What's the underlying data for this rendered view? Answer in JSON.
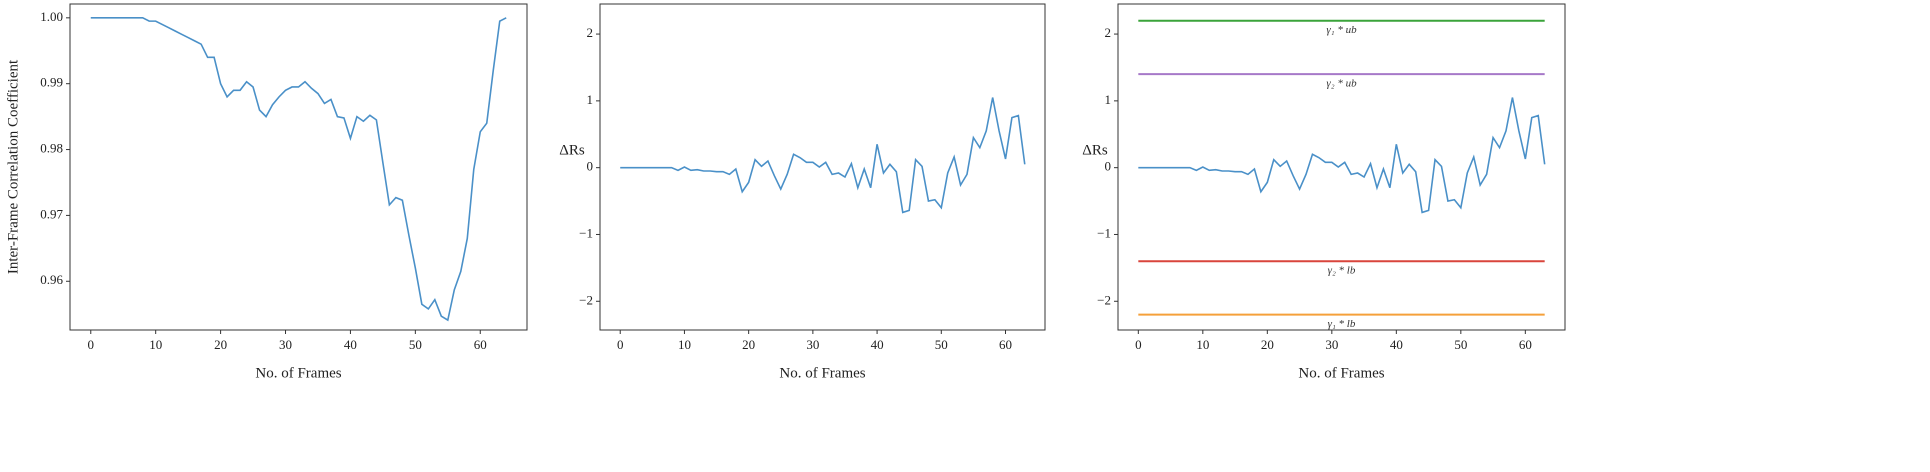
{
  "chart_data": [
    {
      "type": "line",
      "xlabel": "No. of Frames",
      "ylabel": "Inter-Frame Correlation Coefficient",
      "x": [
        0,
        1,
        2,
        3,
        4,
        5,
        6,
        7,
        8,
        9,
        10,
        11,
        12,
        13,
        14,
        15,
        16,
        17,
        18,
        19,
        20,
        21,
        22,
        23,
        24,
        25,
        26,
        27,
        28,
        29,
        30,
        31,
        32,
        33,
        34,
        35,
        36,
        37,
        38,
        39,
        40,
        41,
        42,
        43,
        44,
        45,
        46,
        47,
        48,
        49,
        50,
        51,
        52,
        53,
        54,
        55,
        56,
        57,
        58,
        59,
        60,
        61,
        62,
        63,
        64
      ],
      "values": [
        1.0,
        1.0,
        1.0,
        1.0,
        1.0,
        1.0,
        1.0,
        1.0,
        1.0,
        0.9995,
        0.9995,
        0.999,
        0.9985,
        0.998,
        0.9975,
        0.997,
        0.9965,
        0.996,
        0.994,
        0.994,
        0.99,
        0.988,
        0.989,
        0.989,
        0.9903,
        0.9895,
        0.986,
        0.985,
        0.9868,
        0.988,
        0.989,
        0.9895,
        0.9895,
        0.9903,
        0.9893,
        0.9885,
        0.987,
        0.9876,
        0.985,
        0.9848,
        0.9817,
        0.985,
        0.9843,
        0.9852,
        0.9845,
        0.978,
        0.9716,
        0.9727,
        0.9723,
        0.967,
        0.962,
        0.9565,
        0.9558,
        0.9572,
        0.9547,
        0.9541,
        0.9587,
        0.9615,
        0.9665,
        0.977,
        0.9827,
        0.984,
        0.992,
        0.9995,
        1.0
      ],
      "color": "#4a90c8",
      "xlim": [
        -3.2,
        67.2
      ],
      "xticks": [
        0,
        10,
        20,
        30,
        40,
        50,
        60
      ],
      "ylim": [
        0.9526,
        1.0021
      ],
      "yticks": [
        0.96,
        0.97,
        0.98,
        0.99,
        {
          "value": 1.0,
          "label": "1.00"
        }
      ]
    },
    {
      "type": "line",
      "xlabel": "No. of Frames",
      "ylabel": "ΔRs",
      "x": [
        0,
        1,
        2,
        3,
        4,
        5,
        6,
        7,
        8,
        9,
        10,
        11,
        12,
        13,
        14,
        15,
        16,
        17,
        18,
        19,
        20,
        21,
        22,
        23,
        24,
        25,
        26,
        27,
        28,
        29,
        30,
        31,
        32,
        33,
        34,
        35,
        36,
        37,
        38,
        39,
        40,
        41,
        42,
        43,
        44,
        45,
        46,
        47,
        48,
        49,
        50,
        51,
        52,
        53,
        54,
        55,
        56,
        57,
        58,
        59,
        60,
        61,
        62,
        63
      ],
      "values": [
        0,
        0,
        0,
        0,
        0,
        0,
        0,
        0,
        0,
        -0.04,
        0.01,
        -0.04,
        -0.03,
        -0.05,
        -0.05,
        -0.06,
        -0.06,
        -0.1,
        -0.02,
        -0.36,
        -0.22,
        0.12,
        0.02,
        0.1,
        -0.12,
        -0.32,
        -0.1,
        0.2,
        0.15,
        0.08,
        0.08,
        0.01,
        0.08,
        -0.1,
        -0.08,
        -0.14,
        0.06,
        -0.3,
        -0.02,
        -0.3,
        0.35,
        -0.08,
        0.05,
        -0.06,
        -0.67,
        -0.64,
        0.12,
        0.02,
        -0.5,
        -0.48,
        -0.6,
        -0.08,
        0.16,
        -0.26,
        -0.1,
        0.45,
        0.3,
        0.55,
        1.05,
        0.55,
        0.13,
        0.75,
        0.78,
        0.05
      ],
      "color": "#4a90c8",
      "xlim": [
        -3.15,
        66.15
      ],
      "xticks": [
        0,
        10,
        20,
        30,
        40,
        50,
        60
      ],
      "ylim": [
        -2.43,
        2.45
      ],
      "yticks": [
        {
          "value": -2,
          "label": "−2"
        },
        {
          "value": -1,
          "label": "−1"
        },
        0,
        1,
        2
      ]
    },
    {
      "type": "line",
      "xlabel": "No. of Frames",
      "ylabel": "ΔRs",
      "x": [
        0,
        1,
        2,
        3,
        4,
        5,
        6,
        7,
        8,
        9,
        10,
        11,
        12,
        13,
        14,
        15,
        16,
        17,
        18,
        19,
        20,
        21,
        22,
        23,
        24,
        25,
        26,
        27,
        28,
        29,
        30,
        31,
        32,
        33,
        34,
        35,
        36,
        37,
        38,
        39,
        40,
        41,
        42,
        43,
        44,
        45,
        46,
        47,
        48,
        49,
        50,
        51,
        52,
        53,
        54,
        55,
        56,
        57,
        58,
        59,
        60,
        61,
        62,
        63
      ],
      "values": [
        0,
        0,
        0,
        0,
        0,
        0,
        0,
        0,
        0,
        -0.04,
        0.01,
        -0.04,
        -0.03,
        -0.05,
        -0.05,
        -0.06,
        -0.06,
        -0.1,
        -0.02,
        -0.36,
        -0.22,
        0.12,
        0.02,
        0.1,
        -0.12,
        -0.32,
        -0.1,
        0.2,
        0.15,
        0.08,
        0.08,
        0.01,
        0.08,
        -0.1,
        -0.08,
        -0.14,
        0.06,
        -0.3,
        -0.02,
        -0.3,
        0.35,
        -0.08,
        0.05,
        -0.06,
        -0.67,
        -0.64,
        0.12,
        0.02,
        -0.5,
        -0.48,
        -0.6,
        -0.08,
        0.16,
        -0.26,
        -0.1,
        0.45,
        0.3,
        0.55,
        1.05,
        0.55,
        0.13,
        0.75,
        0.78,
        0.05
      ],
      "color": "#4a90c8",
      "hlines": [
        {
          "label": "γ₁ * ub",
          "value": 2.2,
          "color": "#3aa33a"
        },
        {
          "label": "γ₂ * ub",
          "value": 1.4,
          "color": "#a678c8"
        },
        {
          "label": "γ₂ * lb",
          "value": -1.4,
          "color": "#d9453c"
        },
        {
          "label": "γ₁ * lb",
          "value": -2.2,
          "color": "#f5a03a"
        }
      ],
      "xlim": [
        -3.15,
        66.15
      ],
      "xticks": [
        0,
        10,
        20,
        30,
        40,
        50,
        60
      ],
      "ylim": [
        -2.43,
        2.45
      ],
      "yticks": [
        {
          "value": -2,
          "label": "−2"
        },
        {
          "value": -1,
          "label": "−1"
        },
        0,
        1,
        2
      ]
    }
  ]
}
